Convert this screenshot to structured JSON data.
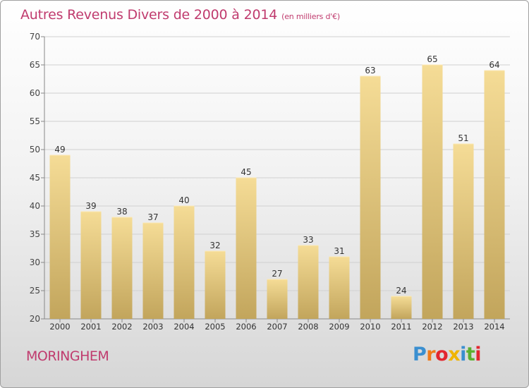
{
  "chart_title": {
    "main": "Autres Revenus Divers de 2000 à 2014",
    "unit": "(en milliers d'€)"
  },
  "commune": "MORINGHEM",
  "logo": {
    "letters": [
      "P",
      "r",
      "o",
      "x",
      "i",
      "t",
      "i"
    ],
    "colors": [
      "#3a8fd0",
      "#f07a1a",
      "#e3262f",
      "#f0b400",
      "#3a8fd0",
      "#5bb030",
      "#e3262f"
    ]
  },
  "chart_data": {
    "type": "bar",
    "title": "Autres Revenus Divers de 2000 à 2014",
    "subtitle": "(en milliers d'€)",
    "categories": [
      "2000",
      "2001",
      "2002",
      "2003",
      "2004",
      "2005",
      "2006",
      "2007",
      "2008",
      "2009",
      "2010",
      "2011",
      "2012",
      "2013",
      "2014"
    ],
    "values": [
      49,
      39,
      38,
      37,
      40,
      32,
      45,
      27,
      33,
      31,
      63,
      24,
      65,
      51,
      64
    ],
    "ylim": [
      20,
      70
    ],
    "yticks": [
      20,
      25,
      30,
      35,
      40,
      45,
      50,
      55,
      60,
      65,
      70
    ],
    "grid": "horizontal",
    "bar_color_top": "#f5dc96",
    "bar_color_bottom": "#c2a55c",
    "label_color": "#333333"
  }
}
